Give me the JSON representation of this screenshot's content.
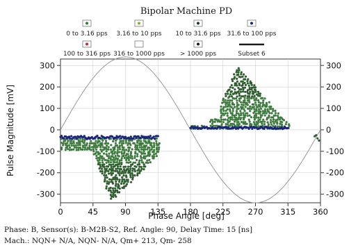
{
  "chart_data": {
    "type": "scatter",
    "title": "Bipolar Machine PD",
    "xlabel": "Phase Angle [deg]",
    "ylabel": "Pulse Magnitude [mV]",
    "xlim": [
      0,
      360
    ],
    "ylim": [
      -340,
      330
    ],
    "x_ticks": [
      "0",
      "45",
      "90",
      "135",
      "180",
      "225",
      "270",
      "315",
      "360"
    ],
    "y_ticks": [
      "300",
      "200",
      "100",
      "0",
      "-100",
      "-200",
      "-300"
    ],
    "y_ticks_right": [
      "300",
      "200",
      "100",
      "0",
      "-100",
      "-200",
      "-300"
    ],
    "legend_row1": [
      {
        "label": "0 to 3.16 pps",
        "color": "#2e7d32"
      },
      {
        "label": "3.16 to 10 pps",
        "color": "#7cb342"
      },
      {
        "label": "10 to 31.6 pps",
        "color": "#263238"
      },
      {
        "label": "31.6 to 100 pps",
        "color": "#1a237e"
      }
    ],
    "legend_row2": [
      {
        "label": "100 to 316 pps",
        "color": "#c62828"
      },
      {
        "label": "316 to 1000 pps",
        "color": "#ffffff"
      },
      {
        "label": "> 1000 pps",
        "color": "#1a1a1a"
      },
      {
        "label": "Subset 6",
        "color": "#1a1a1a"
      }
    ],
    "reference_wave": {
      "amplitude": 340,
      "phase_offset_deg": 0,
      "color": "#9e9e9e"
    },
    "clusters": [
      {
        "name": "negative cluster",
        "x_range": [
          0,
          135
        ],
        "y_range": [
          -340,
          -40
        ],
        "color": "#2e5e2e"
      },
      {
        "name": "positive cluster",
        "x_range": [
          180,
          315
        ],
        "y_range": [
          0,
          300
        ],
        "color": "#2e5e2e"
      },
      {
        "name": "low amplitude band",
        "x_range": [
          0,
          315
        ],
        "y_range": [
          -20,
          20
        ],
        "color": "#1a237e"
      }
    ]
  },
  "footer": {
    "line1": "Phase: B,   Sensor(s): B-M2B-S2,   Ref. Angle: 90,   Delay Time: 15 [ns]",
    "line2": "Mach.:  NQN+ N/A, NQN- N/A, Qm+ 213, Qm- 258"
  }
}
